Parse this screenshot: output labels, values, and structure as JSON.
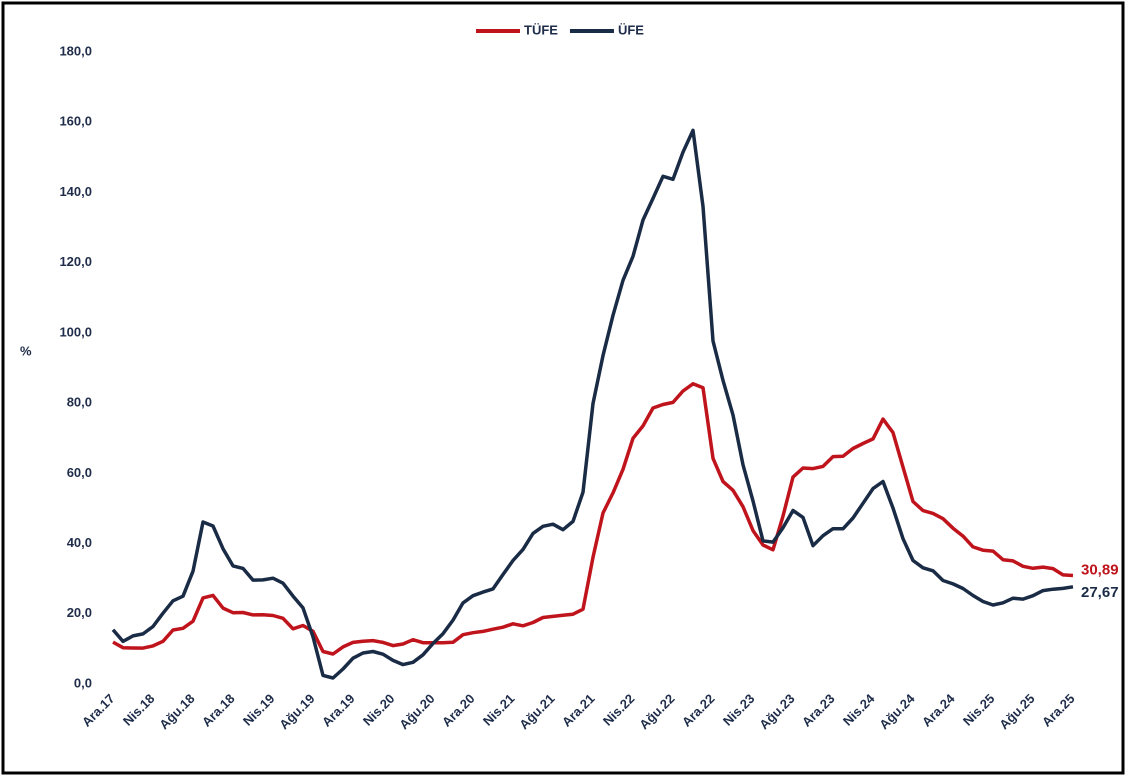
{
  "chart_data": {
    "type": "line",
    "y_label": "%",
    "categories": [
      "Ara.17",
      null,
      null,
      null,
      "Nis.18",
      null,
      null,
      null,
      "Ağu.18",
      null,
      null,
      null,
      "Ara.18",
      null,
      null,
      null,
      "Nis.19",
      null,
      null,
      null,
      "Ağu.19",
      null,
      null,
      null,
      "Ara.19",
      null,
      null,
      null,
      "Nis.20",
      null,
      null,
      null,
      "Ağu.20",
      null,
      null,
      null,
      "Ara.20",
      null,
      null,
      null,
      "Nis.21",
      null,
      null,
      null,
      "Ağu.21",
      null,
      null,
      null,
      "Ara.21",
      null,
      null,
      null,
      "Nis.22",
      null,
      null,
      null,
      "Ağu.22",
      null,
      null,
      null,
      "Ara.22",
      null,
      null,
      null,
      "Nis.23",
      null,
      null,
      null,
      "Ağu.23",
      null,
      null,
      null,
      "Ara.23",
      null,
      null,
      null,
      "Nis.24",
      null,
      null,
      null,
      "Ağu.24",
      null,
      null,
      null,
      "Ara.24",
      null,
      null,
      null,
      "Nis.25",
      null,
      null,
      null,
      "Ağu.25",
      null,
      null,
      null,
      "Ara.25"
    ],
    "series": [
      {
        "name": "TÜFE",
        "color": "#c0141c",
        "values": [
          11.92,
          10.35,
          10.26,
          10.23,
          10.85,
          12.15,
          15.39,
          15.85,
          17.9,
          24.52,
          25.24,
          21.62,
          20.3,
          20.35,
          19.67,
          19.71,
          19.5,
          18.71,
          15.72,
          16.65,
          15.01,
          9.26,
          8.55,
          10.56,
          11.84,
          12.15,
          12.37,
          11.86,
          10.94,
          11.39,
          12.62,
          11.76,
          11.77,
          11.75,
          11.89,
          14.03,
          14.6,
          14.97,
          15.61,
          16.19,
          17.14,
          16.59,
          17.53,
          18.95,
          19.25,
          19.58,
          19.89,
          21.31,
          36.08,
          48.69,
          54.44,
          61.14,
          69.97,
          73.5,
          78.62,
          79.6,
          80.21,
          83.45,
          85.51,
          84.39,
          64.27,
          57.68,
          55.18,
          50.51,
          43.68,
          39.59,
          38.21,
          47.83,
          58.94,
          61.53,
          61.36,
          61.98,
          64.77,
          64.86,
          67.07,
          68.5,
          69.8,
          75.45,
          71.6,
          61.78,
          51.97,
          49.38,
          48.58,
          47.09,
          44.38,
          42.12,
          39.05,
          38.1,
          37.86,
          35.41,
          35.05,
          33.52,
          32.95,
          33.29,
          32.87,
          31.07,
          30.89
        ],
        "value_labels": [
          null,
          null,
          null,
          null,
          null,
          null,
          null,
          null,
          null,
          null,
          null,
          null,
          null,
          null,
          null,
          null,
          null,
          null,
          null,
          null,
          null,
          null,
          null,
          null,
          null,
          null,
          null,
          null,
          null,
          null,
          null,
          null,
          null,
          null,
          null,
          null,
          null,
          null,
          null,
          null,
          null,
          null,
          null,
          null,
          null,
          null,
          null,
          null,
          null,
          null,
          null,
          null,
          null,
          null,
          null,
          null,
          null,
          null,
          null,
          null,
          null,
          null,
          null,
          null,
          null,
          null,
          null,
          null,
          null,
          null,
          null,
          null,
          null,
          null,
          null,
          null,
          null,
          null,
          null,
          null,
          null,
          null,
          null,
          null,
          null,
          null,
          null,
          null,
          null,
          null,
          null,
          null,
          null,
          null,
          null,
          null,
          "30,89"
        ]
      },
      {
        "name": "ÜFE",
        "color": "#1a2b45",
        "values": [
          15.47,
          12.14,
          13.71,
          14.28,
          16.37,
          20.16,
          23.71,
          25.0,
          32.13,
          46.15,
          45.01,
          38.54,
          33.64,
          32.93,
          29.59,
          29.64,
          30.12,
          28.71,
          25.04,
          21.66,
          13.45,
          2.45,
          1.7,
          4.26,
          7.36,
          8.84,
          9.26,
          8.5,
          6.71,
          5.53,
          6.17,
          8.33,
          11.53,
          14.33,
          18.2,
          23.11,
          25.15,
          26.16,
          27.09,
          31.2,
          35.17,
          38.33,
          42.89,
          44.92,
          45.52,
          43.96,
          46.31,
          54.62,
          79.89,
          93.53,
          105.01,
          114.97,
          121.82,
          132.16,
          138.31,
          144.61,
          143.75,
          151.5,
          157.69,
          136.02,
          97.72,
          86.46,
          76.61,
          62.43,
          52.11,
          40.76,
          40.42,
          44.5,
          49.41,
          47.44,
          39.39,
          42.25,
          44.22,
          44.2,
          47.29,
          51.47,
          55.66,
          57.68,
          50.09,
          41.37,
          35.17,
          33.09,
          32.24,
          29.47,
          28.52,
          27.2,
          25.21,
          23.5,
          22.5,
          23.13,
          24.45,
          24.19,
          25.16,
          26.59,
          27.0,
          27.23,
          27.67
        ],
        "value_labels": [
          null,
          null,
          null,
          null,
          null,
          null,
          null,
          null,
          null,
          null,
          null,
          null,
          null,
          null,
          null,
          null,
          null,
          null,
          null,
          null,
          null,
          null,
          null,
          null,
          null,
          null,
          null,
          null,
          null,
          null,
          null,
          null,
          null,
          null,
          null,
          null,
          null,
          null,
          null,
          null,
          null,
          null,
          null,
          null,
          null,
          null,
          null,
          null,
          null,
          null,
          null,
          null,
          null,
          null,
          null,
          null,
          null,
          null,
          null,
          null,
          null,
          null,
          null,
          null,
          null,
          null,
          null,
          null,
          null,
          null,
          null,
          null,
          null,
          null,
          null,
          null,
          null,
          null,
          null,
          null,
          null,
          null,
          null,
          null,
          null,
          null,
          null,
          null,
          null,
          null,
          null,
          null,
          null,
          null,
          null,
          null,
          "27,67"
        ]
      }
    ],
    "ylim": [
      0,
      180
    ],
    "yticks": [
      {
        "value": 0,
        "label": "0,0"
      },
      {
        "value": 20,
        "label": "20,0"
      },
      {
        "value": 40,
        "label": "40,0"
      },
      {
        "value": 60,
        "label": "60,0"
      },
      {
        "value": 80,
        "label": "80,0"
      },
      {
        "value": 100,
        "label": "100,0"
      },
      {
        "value": 120,
        "label": "120,0"
      },
      {
        "value": 140,
        "label": "140,0"
      },
      {
        "value": 160,
        "label": "160,0"
      },
      {
        "value": 180,
        "label": "180,0"
      }
    ],
    "legend": "top",
    "grid": false
  }
}
